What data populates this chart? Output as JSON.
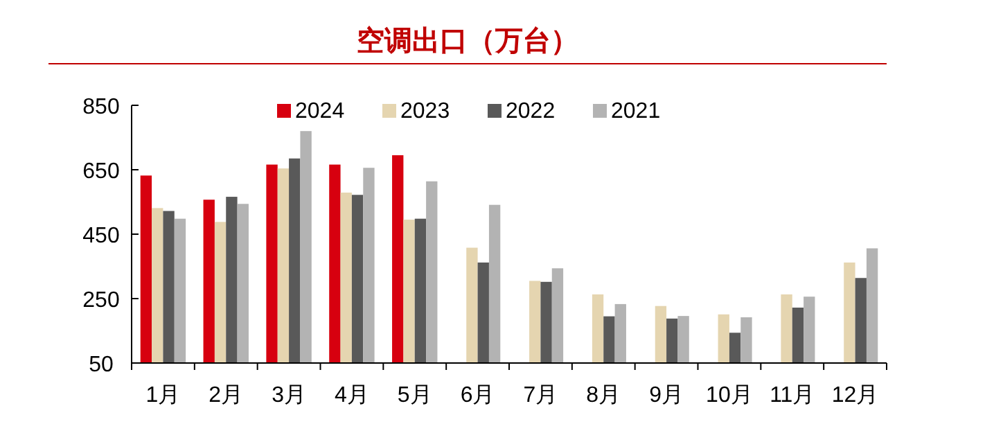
{
  "chart_data": {
    "type": "bar",
    "title": "空调出口（万台）",
    "categories": [
      "1月",
      "2月",
      "3月",
      "4月",
      "5月",
      "6月",
      "7月",
      "8月",
      "9月",
      "10月",
      "11月",
      "12月"
    ],
    "series": [
      {
        "name": "2024",
        "color": "#d7000f",
        "values": [
          632,
          557,
          666,
          666,
          695,
          null,
          null,
          null,
          null,
          null,
          null,
          null
        ]
      },
      {
        "name": "2023",
        "color": "#e5d5b0",
        "values": [
          531,
          488,
          654,
          579,
          495,
          408,
          305,
          263,
          227,
          201,
          263,
          362
        ]
      },
      {
        "name": "2022",
        "color": "#595959",
        "values": [
          522,
          566,
          685,
          572,
          498,
          362,
          302,
          195,
          188,
          144,
          222,
          314
        ]
      },
      {
        "name": "2021",
        "color": "#b3b3b3",
        "values": [
          498,
          544,
          770,
          656,
          614,
          541,
          344,
          233,
          196,
          192,
          256,
          406
        ]
      }
    ],
    "ylim": [
      50,
      850
    ],
    "yticks": [
      50,
      250,
      450,
      650,
      850
    ],
    "grid": false,
    "legend": "top"
  }
}
